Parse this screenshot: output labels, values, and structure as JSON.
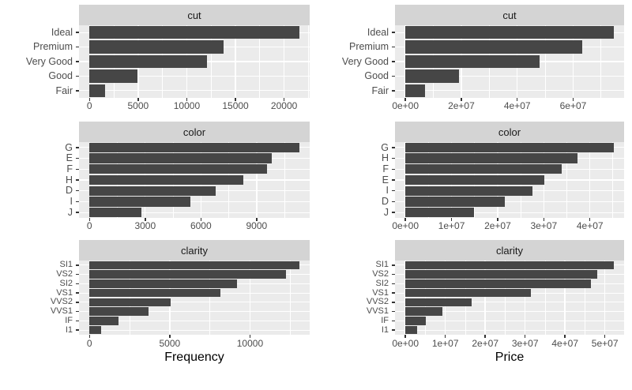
{
  "figure": {
    "description": "Faceted horizontal bar charts",
    "left_column_axis_title": "Frequency",
    "right_column_axis_title": "Price"
  },
  "colors": {
    "bar": "#464646",
    "panel_background": "#ebebeb",
    "strip_background": "#d4d4d4",
    "gridline": "#ffffff",
    "tick_mark": "#333333",
    "tick_label": "#4d4d4d",
    "strip_text": "#1a1a1a",
    "axis_title_text": "#000000",
    "page_background": "#ffffff"
  },
  "chart_data": [
    {
      "type": "bar",
      "orientation": "horizontal",
      "facet": "cut",
      "measure": "Frequency",
      "categories": [
        "Ideal",
        "Premium",
        "Very Good",
        "Good",
        "Fair"
      ],
      "values": [
        21551,
        13791,
        12082,
        4906,
        1610
      ],
      "xticks": [
        0,
        5000,
        10000,
        15000,
        20000
      ],
      "xtick_labels": [
        "0",
        "5000",
        "10000",
        "15000",
        "20000"
      ],
      "xlim": [
        0,
        21551
      ],
      "grid": "on",
      "xlabel": ""
    },
    {
      "type": "bar",
      "orientation": "horizontal",
      "facet": "cut",
      "measure": "Price",
      "categories": [
        "Ideal",
        "Premium",
        "Very Good",
        "Good",
        "Fair"
      ],
      "values": [
        74513487,
        63221498,
        48107623,
        19275009,
        7017600
      ],
      "xticks": [
        0,
        20000000,
        40000000,
        60000000
      ],
      "xtick_labels": [
        "0e+00",
        "2e+07",
        "4e+07",
        "6e+07"
      ],
      "xlim": [
        0,
        74513487
      ],
      "grid": "on",
      "xlabel": ""
    },
    {
      "type": "bar",
      "orientation": "horizontal",
      "facet": "color",
      "measure": "Frequency",
      "categories": [
        "G",
        "E",
        "F",
        "H",
        "D",
        "I",
        "J"
      ],
      "values": [
        11292,
        9797,
        9542,
        8304,
        6775,
        5422,
        2808
      ],
      "xticks": [
        0,
        3000,
        6000,
        9000
      ],
      "xtick_labels": [
        "0",
        "3000",
        "6000",
        "9000"
      ],
      "xlim": [
        0,
        11292
      ],
      "grid": "on",
      "xlabel": ""
    },
    {
      "type": "bar",
      "orientation": "horizontal",
      "facet": "color",
      "measure": "Price",
      "categories": [
        "G",
        "H",
        "F",
        "E",
        "I",
        "D",
        "J"
      ],
      "values": [
        45158240,
        37257301,
        33807576,
        30142944,
        27608146,
        21476439,
        14949281
      ],
      "xticks": [
        0,
        10000000,
        20000000,
        30000000,
        40000000
      ],
      "xtick_labels": [
        "0e+00",
        "1e+07",
        "2e+07",
        "3e+07",
        "4e+07"
      ],
      "xlim": [
        0,
        45158240
      ],
      "grid": "on",
      "xlabel": ""
    },
    {
      "type": "bar",
      "orientation": "horizontal",
      "facet": "clarity",
      "measure": "Frequency",
      "categories": [
        "SI1",
        "VS2",
        "SI2",
        "VS1",
        "VVS2",
        "VVS1",
        "IF",
        "I1"
      ],
      "values": [
        13065,
        12258,
        9194,
        8171,
        5066,
        3655,
        1790,
        741
      ],
      "xticks": [
        0,
        5000,
        10000
      ],
      "xtick_labels": [
        "0",
        "5000",
        "10000"
      ],
      "xlim": [
        0,
        13065
      ],
      "grid": "on",
      "xlabel": "Frequency"
    },
    {
      "type": "bar",
      "orientation": "horizontal",
      "facet": "clarity",
      "measure": "Price",
      "categories": [
        "SI1",
        "VS2",
        "SI2",
        "VS1",
        "VVS2",
        "VVS1",
        "IF",
        "I1"
      ],
      "values": [
        52207753,
        48112520,
        46549487,
        31372210,
        16635411,
        9221985,
        5128062,
        2907809
      ],
      "xticks": [
        0,
        10000000,
        20000000,
        30000000,
        40000000,
        50000000
      ],
      "xtick_labels": [
        "0e+00",
        "1e+07",
        "2e+07",
        "3e+07",
        "4e+07",
        "5e+07"
      ],
      "xlim": [
        0,
        52207753
      ],
      "grid": "on",
      "xlabel": "Price"
    }
  ]
}
